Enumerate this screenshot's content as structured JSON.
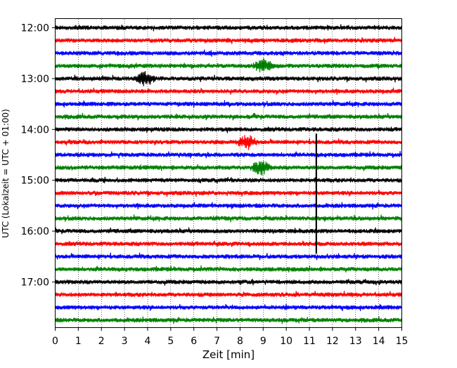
{
  "chart_data": {
    "type": "line",
    "title": "",
    "xlabel": "Zeit  [min]",
    "ylabel": "UTC (Lokalzeit = UTC + 01:00)",
    "xlim": [
      0,
      15
    ],
    "x_ticks": [
      "0",
      "1",
      "2",
      "3",
      "4",
      "5",
      "6",
      "7",
      "8",
      "9",
      "10",
      "11",
      "12",
      "13",
      "14",
      "15"
    ],
    "y_ticks": [
      "12:00",
      "13:00",
      "14:00",
      "15:00",
      "16:00",
      "17:00"
    ],
    "grid": "vertical dotted",
    "trace_colors": [
      "#000000",
      "#ff0000",
      "#0000ff",
      "#008000"
    ],
    "trace_start_times": [
      "12:00",
      "12:15",
      "12:30",
      "12:45",
      "13:00",
      "13:15",
      "13:30",
      "13:45",
      "14:00",
      "14:15",
      "14:30",
      "14:45",
      "15:00",
      "15:15",
      "15:30",
      "15:45",
      "16:00",
      "16:15",
      "16:30",
      "16:45",
      "17:00",
      "17:15",
      "17:30",
      "17:45"
    ],
    "events": [
      {
        "trace": "14:15",
        "minute": 8.3,
        "note": "red burst"
      },
      {
        "trace": "14:45",
        "minute": 8.9,
        "note": "green burst"
      },
      {
        "trace": "12:45",
        "minute": 9.0,
        "note": "green burst"
      },
      {
        "trace": "13:00",
        "minute": 3.9,
        "note": "black spike"
      },
      {
        "trace_range": [
          "14:00",
          "16:15"
        ],
        "minute": 11.3,
        "note": "large vertical black spike"
      }
    ]
  }
}
